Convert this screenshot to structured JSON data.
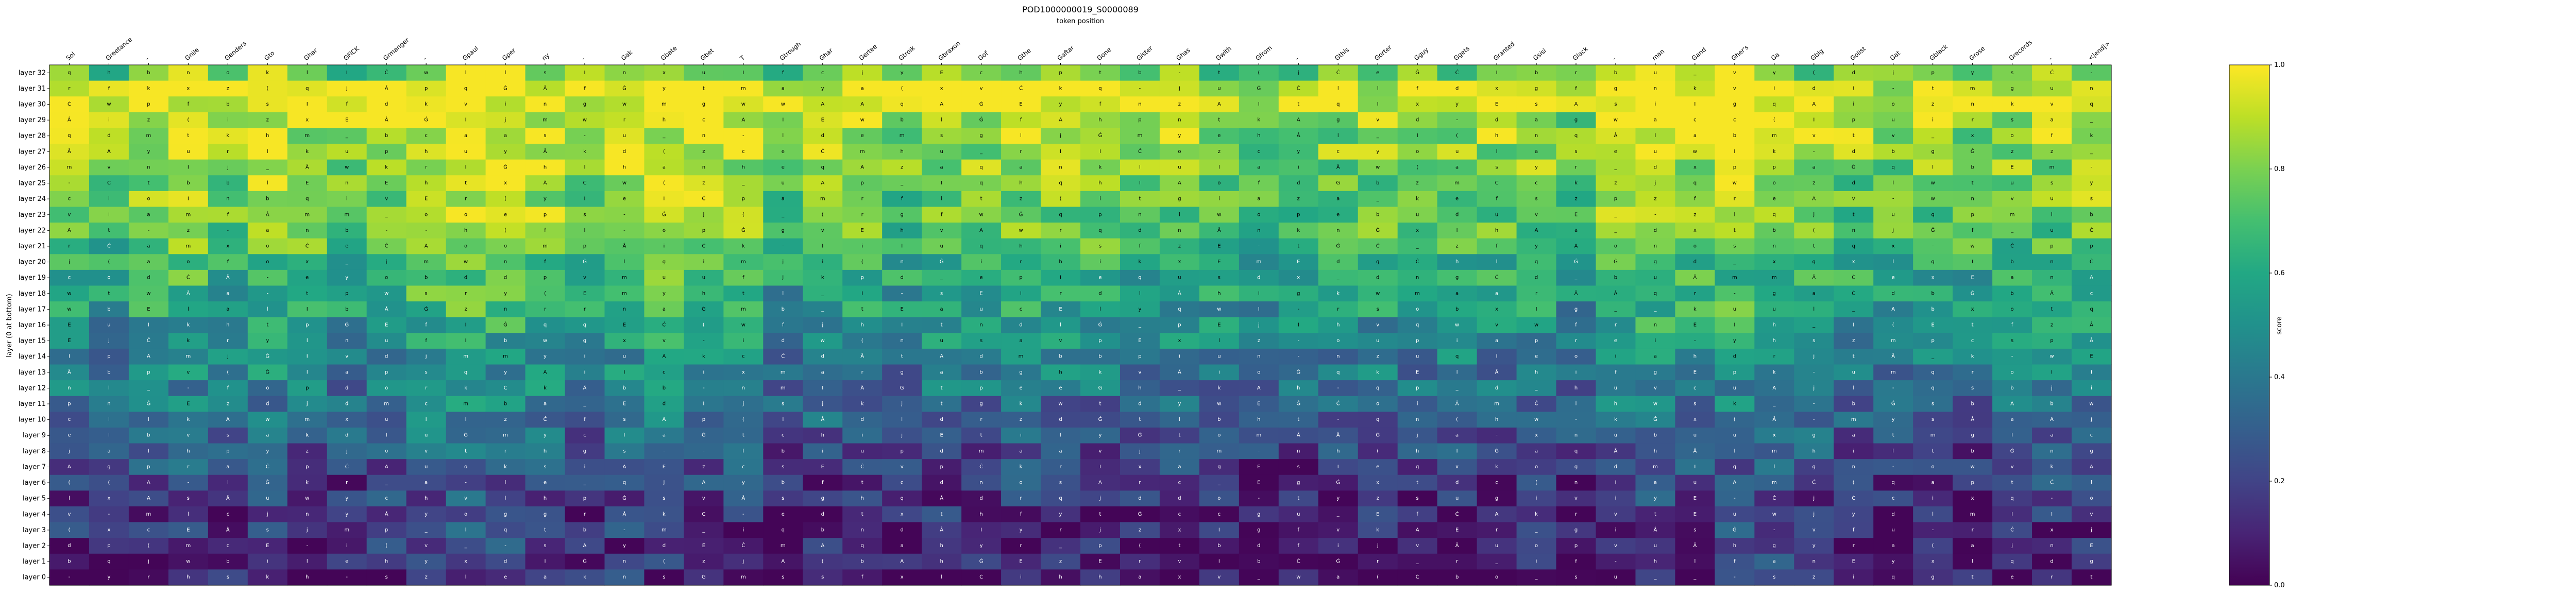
{
  "chart_data": {
    "type": "heatmap",
    "title": "POD1000000019_S0000089",
    "xlabel": "token position",
    "ylabel": "layer (0 at bottom)",
    "colorbar_label": "score",
    "colormap": "viridis",
    "clim": [
      0.0,
      1.0
    ],
    "colorbar_ticks": [
      "0.0",
      "0.2",
      "0.4",
      "0.6",
      "0.8",
      "1.0"
    ],
    "x_tick_labels": [
      "Sol",
      "Greetance",
      "-",
      "Gnile",
      "Genders",
      "Gto",
      "Ghar",
      "GFiCK",
      "Grmanger",
      "-",
      "Gpaul",
      "Gper",
      "ny",
      "-",
      "Gak",
      "Gbate",
      "Gbet",
      "T",
      "Gtrough",
      "Ghar",
      "Gertee",
      "Gtroik",
      "Gbraxon",
      "Gof",
      "Gthe",
      "Gaftar",
      "Gone",
      "Gister",
      "Ghas",
      "Gwith",
      "Gfrom",
      "-",
      "Gthis",
      "Gorter",
      "Gguy",
      "Ggets",
      "Granted",
      "Gsisi",
      "Glack",
      "-",
      "man",
      "Gand",
      "Gher's",
      "Ga",
      "Gbig",
      "Golist",
      "Gat",
      "Gblack",
      "Grose",
      "Grecords",
      "-",
      "<|end|>"
    ],
    "y_tick_labels": [
      "layer 32",
      "layer 31",
      "layer 30",
      "layer 29",
      "layer 28",
      "layer 27",
      "layer 26",
      "layer 25",
      "layer 24",
      "layer 23",
      "layer 22",
      "layer 21",
      "layer 20",
      "layer 19",
      "layer 18",
      "layer 17",
      "layer 16",
      "layer 15",
      "layer 14",
      "layer 13",
      "layer 12",
      "layer 11",
      "layer 10",
      "layer 9",
      "layer 8",
      "layer 7",
      "layer 6",
      "layer 5",
      "layer 4",
      "layer 3",
      "layer 2",
      "layer 1",
      "layer 0"
    ],
    "cell_glyphs": [
      "a",
      "t",
      "e",
      "i",
      "s",
      "o",
      "n",
      "m",
      "p",
      "A",
      "E",
      "I",
      "Â",
      "Ċ",
      "Ġ",
      "(",
      "-",
      "_",
      "j",
      "l",
      "r",
      "u",
      "y",
      "d",
      "c",
      "g",
      "f",
      "v",
      "w",
      "k",
      "h",
      "x",
      "z",
      "b",
      "q"
    ],
    "row_profile": [
      0.72,
      0.93,
      0.9,
      0.85,
      0.82,
      0.8,
      0.78,
      0.76,
      0.74,
      0.72,
      0.7,
      0.66,
      0.62,
      0.58,
      0.55,
      0.52,
      0.48,
      0.44,
      0.4,
      0.37,
      0.34,
      0.31,
      0.28,
      0.24,
      0.2,
      0.17,
      0.14,
      0.11,
      0.09,
      0.07,
      0.06,
      0.05,
      0.04
    ],
    "column_bias": [
      0.06,
      -0.02,
      0.08,
      0.1,
      0.05,
      0.12,
      0.06,
      0.03,
      0.08,
      0.15,
      0.18,
      0.14,
      0.12,
      0.04,
      0.1,
      0.12,
      0.1,
      0.08,
      -0.04,
      0.02,
      0.06,
      -0.02,
      0.05,
      0.04,
      0.06,
      0.05,
      0.03,
      0.0,
      0.04,
      0.02,
      -0.04,
      -0.02,
      0.0,
      0.02,
      0.03,
      0.04,
      0.02,
      0.04,
      -0.04,
      0.08,
      0.12,
      0.1,
      0.14,
      0.12,
      0.06,
      0.02,
      0.0,
      0.02,
      0.0,
      0.04,
      0.06,
      0.08
    ]
  }
}
